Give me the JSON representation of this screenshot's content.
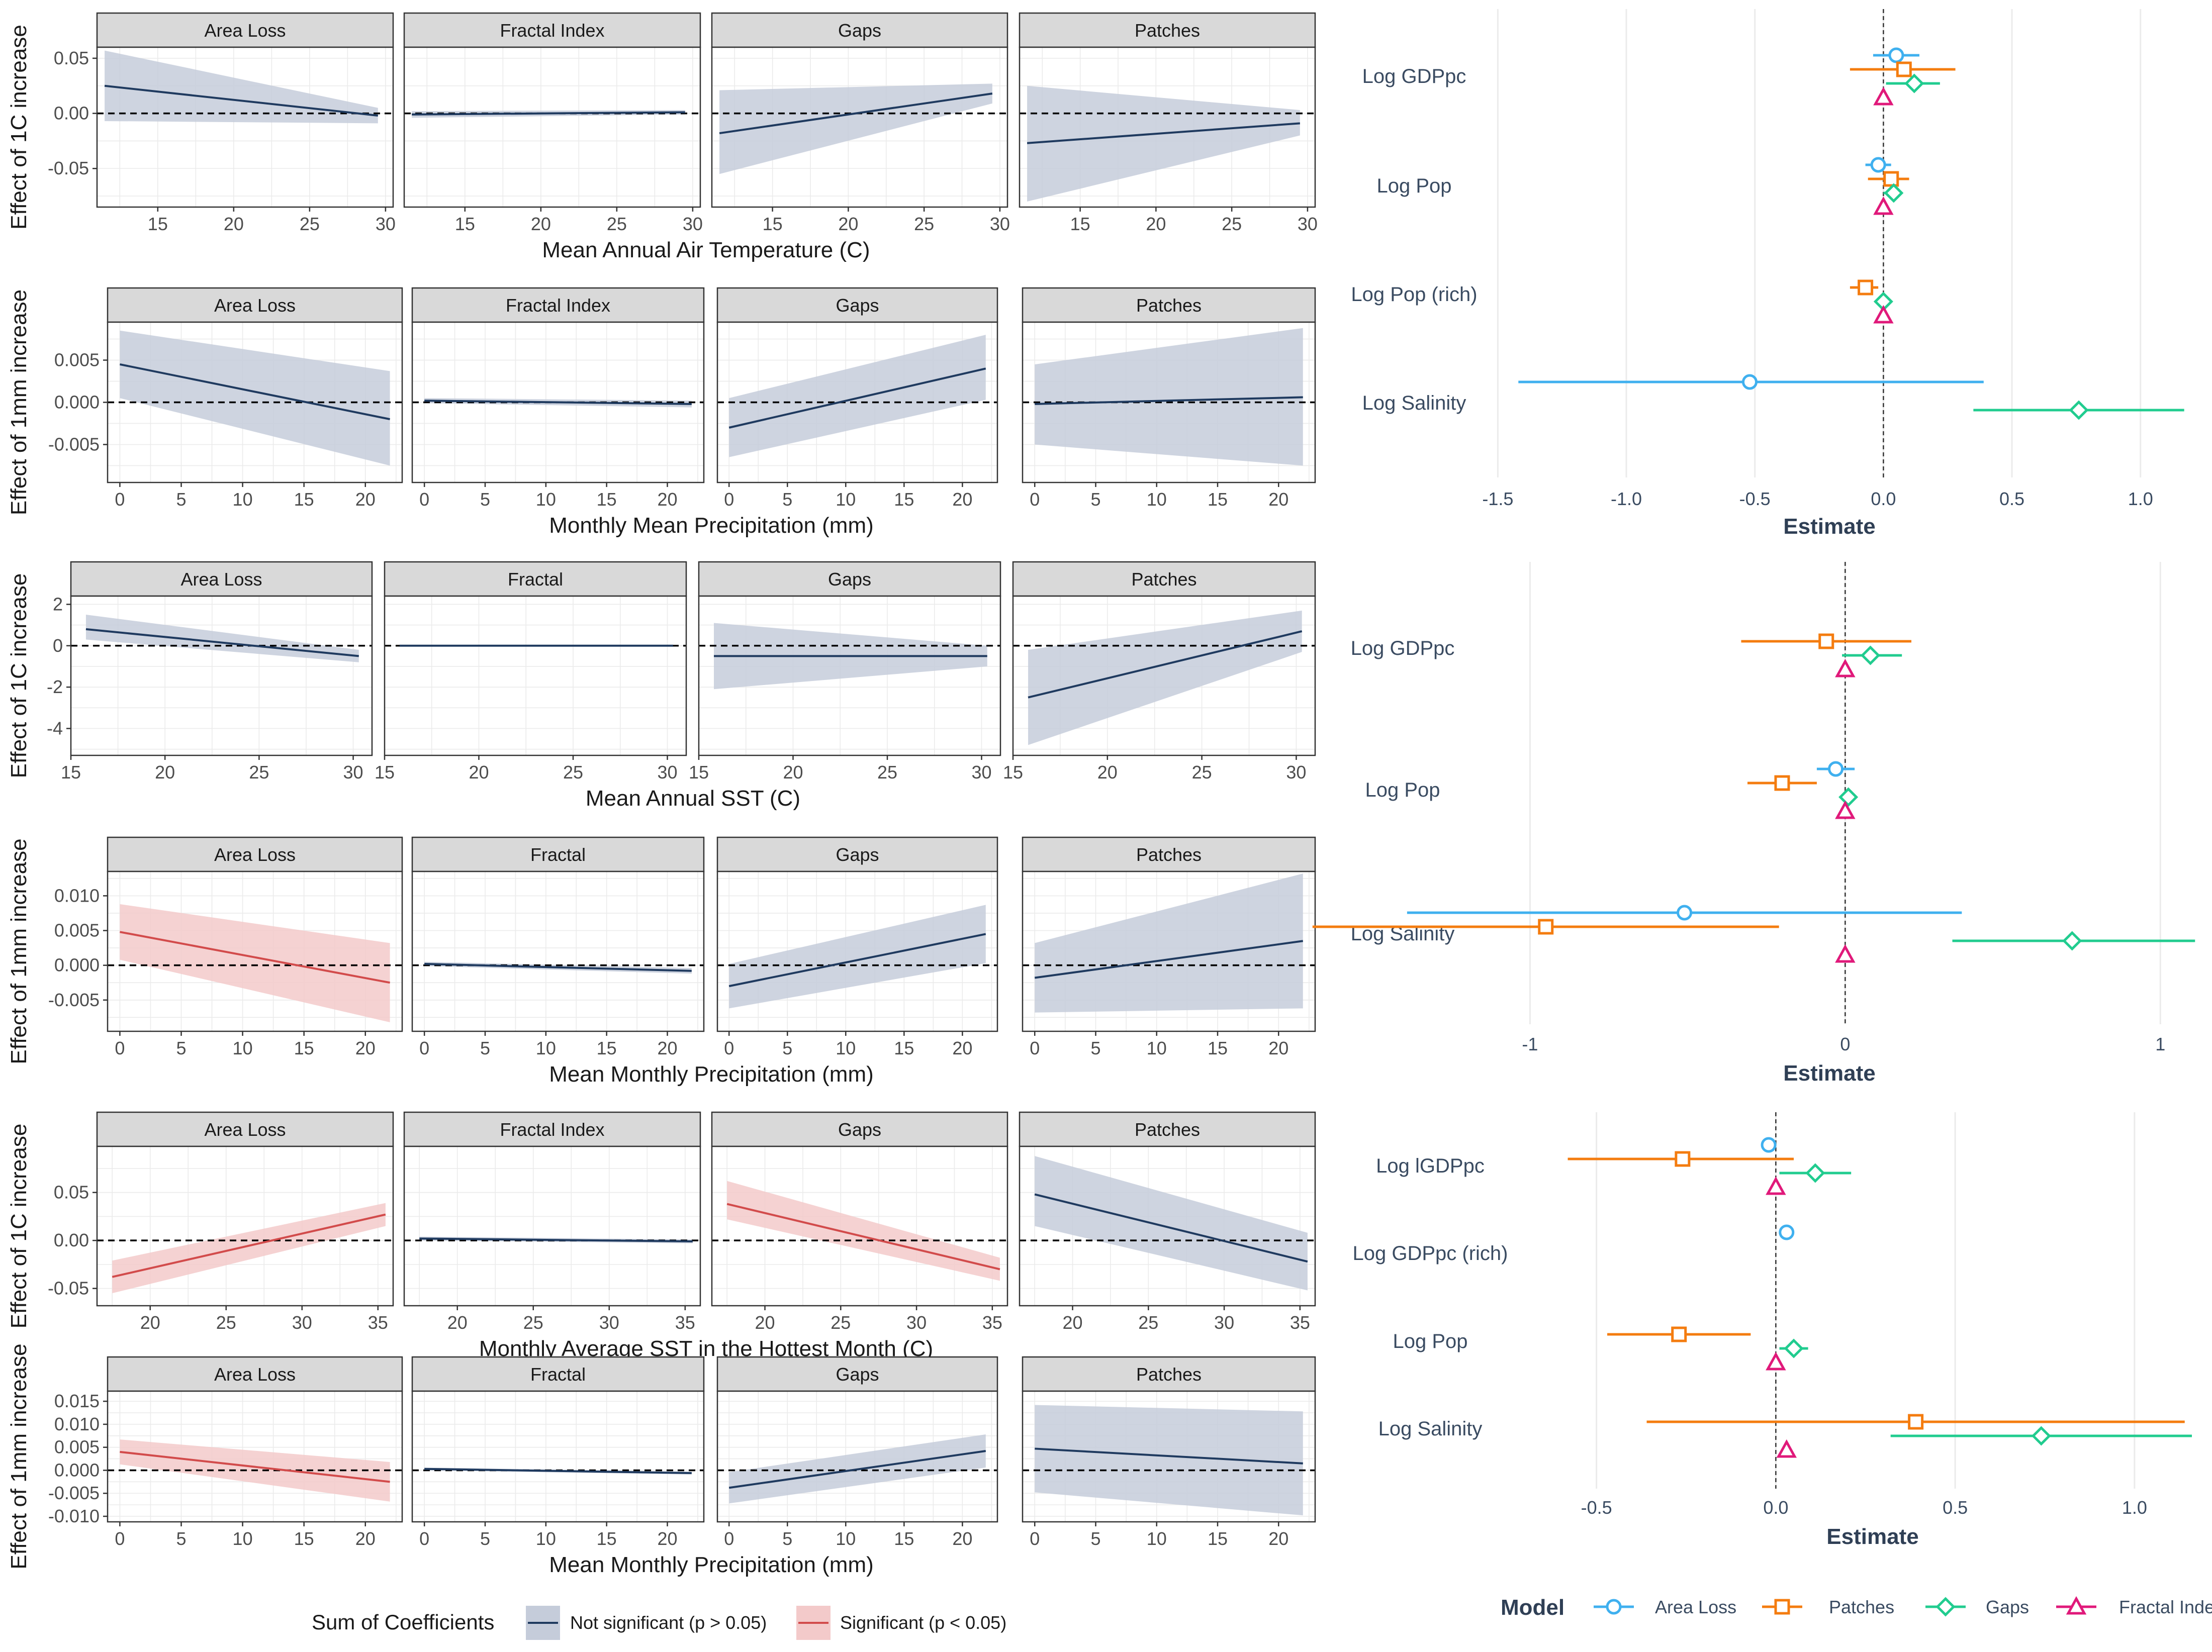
{
  "colors": {
    "not_significant_line": "#1f3a5f",
    "not_significant_band": "#c5ccda",
    "significant_line": "#d24b4b",
    "significant_band": "#f3caca",
    "strip_fill": "#d9d9d9",
    "area_loss": "#3fb0ef",
    "patches": "#f47c0f",
    "gaps": "#21cc8f",
    "fractal": "#e0197a"
  },
  "legend_bottom": {
    "title": "Sum of Coefficients",
    "items": [
      "Not significant (p > 0.05)",
      "Significant (p < 0.05)"
    ]
  },
  "legend_model": {
    "title": "Model",
    "items": [
      {
        "label": "Area Loss",
        "shape": "circle",
        "color_key": "area_loss"
      },
      {
        "label": "Patches",
        "shape": "square",
        "color_key": "patches"
      },
      {
        "label": "Gaps",
        "shape": "diamond",
        "color_key": "gaps"
      },
      {
        "label": "Fractal Inde",
        "shape": "triangle",
        "color_key": "fractal"
      }
    ]
  },
  "chart_data": [
    {
      "type": "line",
      "xlabel": "Mean Annual Air Temperature (C)",
      "ylabel": "Effect of 1C increase",
      "xlim": [
        11,
        30.5
      ],
      "ylim": [
        -0.085,
        0.06
      ],
      "xticks": [
        15,
        20,
        25,
        30
      ],
      "yticks": [
        -0.05,
        0,
        0.05
      ],
      "ytick_labels": [
        "-0.05",
        "0.00",
        "0.05"
      ],
      "panels": [
        {
          "name": "Area Loss",
          "significant": false,
          "x": [
            11.5,
            29.5
          ],
          "y": [
            0.025,
            -0.002
          ],
          "lo": [
            -0.007,
            -0.009
          ],
          "hi": [
            0.057,
            0.005
          ]
        },
        {
          "name": "Fractal Index",
          "significant": false,
          "x": [
            11.5,
            29.5
          ],
          "y": [
            -0.001,
            0.001
          ],
          "lo": [
            -0.004,
            -0.001
          ],
          "hi": [
            0.002,
            0.003
          ]
        },
        {
          "name": "Gaps",
          "significant": false,
          "x": [
            11.5,
            29.5
          ],
          "y": [
            -0.018,
            0.018
          ],
          "lo": [
            -0.055,
            0.009
          ],
          "hi": [
            0.021,
            0.027
          ]
        },
        {
          "name": "Patches",
          "significant": false,
          "x": [
            11.5,
            29.5
          ],
          "y": [
            -0.027,
            -0.009
          ],
          "lo": [
            -0.08,
            -0.02
          ],
          "hi": [
            0.025,
            0.003
          ]
        }
      ]
    },
    {
      "type": "line",
      "xlabel": "Monthly Mean Precipitation (mm)",
      "ylabel": "Effect of 1mm increase",
      "xlim": [
        -1,
        23
      ],
      "ylim": [
        -0.0095,
        0.0095
      ],
      "xticks": [
        0,
        5,
        10,
        15,
        20
      ],
      "yticks": [
        -0.005,
        0,
        0.005
      ],
      "ytick_labels": [
        "-0.005",
        "0.000",
        "0.005"
      ],
      "panels": [
        {
          "name": "Area Loss",
          "significant": false,
          "x": [
            0,
            22
          ],
          "y": [
            0.0045,
            -0.002
          ],
          "lo": [
            0.0005,
            -0.0075
          ],
          "hi": [
            0.0085,
            0.0037
          ]
        },
        {
          "name": "Fractal Index",
          "significant": false,
          "x": [
            0,
            22
          ],
          "y": [
            0.0002,
            -0.0002
          ],
          "lo": [
            -0.0001,
            -0.0006
          ],
          "hi": [
            0.0005,
            0.0002
          ]
        },
        {
          "name": "Gaps",
          "significant": false,
          "x": [
            0,
            22
          ],
          "y": [
            -0.003,
            0.004
          ],
          "lo": [
            -0.0065,
            0.0003
          ],
          "hi": [
            0.0005,
            0.008
          ]
        },
        {
          "name": "Patches",
          "significant": false,
          "x": [
            0,
            22
          ],
          "y": [
            -0.0002,
            0.0006
          ],
          "lo": [
            -0.005,
            -0.0075
          ],
          "hi": [
            0.0045,
            0.0088
          ]
        }
      ]
    },
    {
      "type": "line",
      "xlabel": "Mean Annual SST (C)",
      "ylabel": "Effect of 1C increase",
      "xlim": [
        15,
        31
      ],
      "ylim": [
        -5.3,
        2.4
      ],
      "xticks": [
        15,
        20,
        25,
        30
      ],
      "yticks": [
        -4,
        -2,
        0,
        2
      ],
      "ytick_labels": [
        "-4",
        "-2",
        "0",
        "2"
      ],
      "panels": [
        {
          "name": "Area Loss",
          "significant": false,
          "x": [
            15.8,
            30.3
          ],
          "y": [
            0.8,
            -0.5
          ],
          "lo": [
            0.3,
            -0.8
          ],
          "hi": [
            1.5,
            -0.2
          ]
        },
        {
          "name": "Fractal",
          "significant": false,
          "x": [
            15.8,
            30.3
          ],
          "y": [
            0.0,
            0.0
          ],
          "lo": [
            -0.03,
            -0.03
          ],
          "hi": [
            0.03,
            0.03
          ]
        },
        {
          "name": "Gaps",
          "significant": false,
          "x": [
            15.8,
            30.3
          ],
          "y": [
            -0.5,
            -0.5
          ],
          "lo": [
            -2.1,
            -1.0
          ],
          "hi": [
            1.1,
            0.0
          ]
        },
        {
          "name": "Patches",
          "significant": false,
          "x": [
            15.8,
            30.3
          ],
          "y": [
            -2.5,
            0.7
          ],
          "lo": [
            -4.8,
            -0.3
          ],
          "hi": [
            -0.2,
            1.7
          ]
        }
      ]
    },
    {
      "type": "line",
      "xlabel": "Mean Monthly Precipitation (mm)",
      "ylabel": "Effect of 1mm increase",
      "xlim": [
        -1,
        23
      ],
      "ylim": [
        -0.0095,
        0.0135
      ],
      "xticks": [
        0,
        5,
        10,
        15,
        20
      ],
      "yticks": [
        -0.005,
        0,
        0.005,
        0.01
      ],
      "ytick_labels": [
        "-0.005",
        "0.000",
        "0.005",
        "0.010"
      ],
      "panels": [
        {
          "name": "Area Loss",
          "significant": true,
          "x": [
            0,
            22
          ],
          "y": [
            0.0048,
            -0.0025
          ],
          "lo": [
            0.0008,
            -0.0082
          ],
          "hi": [
            0.0088,
            0.0032
          ]
        },
        {
          "name": "Fractal",
          "significant": false,
          "x": [
            0,
            22
          ],
          "y": [
            0.0002,
            -0.0008
          ],
          "lo": [
            -0.0001,
            -0.0012
          ],
          "hi": [
            0.0005,
            -0.0004
          ]
        },
        {
          "name": "Gaps",
          "significant": false,
          "x": [
            0,
            22
          ],
          "y": [
            -0.003,
            0.0045
          ],
          "lo": [
            -0.0062,
            0.0003
          ],
          "hi": [
            0.0002,
            0.0087
          ]
        },
        {
          "name": "Patches",
          "significant": false,
          "x": [
            0,
            22
          ],
          "y": [
            -0.0018,
            0.0035
          ],
          "lo": [
            -0.0068,
            -0.0062
          ],
          "hi": [
            0.0032,
            0.0132
          ]
        }
      ]
    },
    {
      "type": "line",
      "xlabel": "Monthly Average SST in the Hottest Month (C)",
      "ylabel": "Effect of 1C increase",
      "xlim": [
        16.5,
        36
      ],
      "ylim": [
        -0.068,
        0.098
      ],
      "xticks": [
        20,
        25,
        30,
        35
      ],
      "yticks": [
        -0.05,
        0,
        0.05
      ],
      "ytick_labels": [
        "-0.05",
        "0.00",
        "0.05"
      ],
      "panels": [
        {
          "name": "Area Loss",
          "significant": true,
          "x": [
            17.5,
            35.5
          ],
          "y": [
            -0.038,
            0.027
          ],
          "lo": [
            -0.055,
            0.015
          ],
          "hi": [
            -0.021,
            0.039
          ]
        },
        {
          "name": "Fractal Index",
          "significant": false,
          "x": [
            17.5,
            35.5
          ],
          "y": [
            0.002,
            -0.001
          ],
          "lo": [
            0.0,
            -0.003
          ],
          "hi": [
            0.004,
            0.001
          ]
        },
        {
          "name": "Gaps",
          "significant": true,
          "x": [
            17.5,
            35.5
          ],
          "y": [
            0.038,
            -0.03
          ],
          "lo": [
            0.022,
            -0.042
          ],
          "hi": [
            0.062,
            -0.018
          ]
        },
        {
          "name": "Patches",
          "significant": false,
          "x": [
            17.5,
            35.5
          ],
          "y": [
            0.048,
            -0.022
          ],
          "lo": [
            0.015,
            -0.052
          ],
          "hi": [
            0.088,
            0.008
          ]
        }
      ]
    },
    {
      "type": "line",
      "xlabel": "Mean Monthly Precipitation (mm)",
      "ylabel": "Effect of 1mm increase",
      "xlim": [
        -1,
        23
      ],
      "ylim": [
        -0.0112,
        0.0172
      ],
      "xticks": [
        0,
        5,
        10,
        15,
        20
      ],
      "yticks": [
        -0.01,
        -0.005,
        0,
        0.005,
        0.01,
        0.015
      ],
      "ytick_labels": [
        "-0.010",
        "-0.005",
        "0.000",
        "0.005",
        "0.010",
        "0.015"
      ],
      "panels": [
        {
          "name": "Area Loss",
          "significant": true,
          "x": [
            0,
            22
          ],
          "y": [
            0.004,
            -0.0025
          ],
          "lo": [
            0.0013,
            -0.0068
          ],
          "hi": [
            0.0067,
            0.0018
          ]
        },
        {
          "name": "Fractal",
          "significant": false,
          "x": [
            0,
            22
          ],
          "y": [
            0.0003,
            -0.0006
          ],
          "lo": [
            0.0,
            -0.0009
          ],
          "hi": [
            0.0006,
            -0.0003
          ]
        },
        {
          "name": "Gaps",
          "significant": false,
          "x": [
            0,
            22
          ],
          "y": [
            -0.0038,
            0.0042
          ],
          "lo": [
            -0.0072,
            0.0006
          ],
          "hi": [
            -0.0004,
            0.0078
          ]
        },
        {
          "name": "Patches",
          "significant": false,
          "x": [
            0,
            22
          ],
          "y": [
            0.0047,
            0.0015
          ],
          "lo": [
            -0.0048,
            -0.0098
          ],
          "hi": [
            0.0142,
            0.0128
          ]
        }
      ]
    },
    {
      "type": "scatter",
      "xlabel": "Estimate",
      "xlim": [
        -1.62,
        1.2
      ],
      "xticks": [
        -1.5,
        -1.0,
        -0.5,
        0.0,
        0.5,
        1.0
      ],
      "xtick_labels": [
        "-1.5",
        "-1.0",
        "-0.5",
        "0.0",
        "0.5",
        "1.0"
      ],
      "rows": [
        {
          "label": "Log GDPpc",
          "points": [
            {
              "model": "area_loss",
              "est": 0.05,
              "lo": -0.04,
              "hi": 0.14
            },
            {
              "model": "patches",
              "est": 0.08,
              "lo": -0.13,
              "hi": 0.28
            },
            {
              "model": "gaps",
              "est": 0.12,
              "lo": 0.01,
              "hi": 0.22
            },
            {
              "model": "fractal",
              "est": 0.0,
              "lo": null,
              "hi": null
            }
          ]
        },
        {
          "label": "Log Pop",
          "points": [
            {
              "model": "area_loss",
              "est": -0.02,
              "lo": -0.07,
              "hi": 0.03
            },
            {
              "model": "patches",
              "est": 0.03,
              "lo": -0.06,
              "hi": 0.1
            },
            {
              "model": "gaps",
              "est": 0.04,
              "lo": 0.0,
              "hi": 0.07
            },
            {
              "model": "fractal",
              "est": 0.0,
              "lo": null,
              "hi": null
            }
          ]
        },
        {
          "label": "Log Pop (rich)",
          "points": [
            {
              "model": "patches",
              "est": -0.07,
              "lo": -0.13,
              "hi": -0.02
            },
            {
              "model": "gaps",
              "est": 0.0,
              "lo": null,
              "hi": null
            },
            {
              "model": "fractal",
              "est": 0.0,
              "lo": null,
              "hi": null
            }
          ]
        },
        {
          "label": "Log Salinity",
          "points": [
            {
              "model": "area_loss",
              "est": -0.52,
              "lo": -1.42,
              "hi": 0.39
            },
            {
              "model": "gaps",
              "est": 0.76,
              "lo": 0.35,
              "hi": 1.17
            }
          ]
        }
      ]
    },
    {
      "type": "scatter",
      "xlabel": "Estimate",
      "xlim": [
        -1.2,
        1.1
      ],
      "xticks": [
        -1,
        0,
        1
      ],
      "xtick_labels": [
        "-1",
        "0",
        "1"
      ],
      "rows": [
        {
          "label": "Log GDPpc",
          "points": [
            {
              "model": "patches",
              "est": -0.06,
              "lo": -0.33,
              "hi": 0.21
            },
            {
              "model": "gaps",
              "est": 0.08,
              "lo": -0.01,
              "hi": 0.18
            },
            {
              "model": "fractal",
              "est": 0.0,
              "lo": null,
              "hi": null
            }
          ]
        },
        {
          "label": "Log Pop",
          "points": [
            {
              "model": "area_loss",
              "est": -0.03,
              "lo": -0.09,
              "hi": 0.03
            },
            {
              "model": "patches",
              "est": -0.2,
              "lo": -0.31,
              "hi": -0.09
            },
            {
              "model": "gaps",
              "est": 0.01,
              "lo": null,
              "hi": null
            },
            {
              "model": "fractal",
              "est": 0.0,
              "lo": null,
              "hi": null
            }
          ]
        },
        {
          "label": "Log Salinity",
          "points": [
            {
              "model": "area_loss",
              "est": -0.51,
              "lo": -1.39,
              "hi": 0.37
            },
            {
              "model": "patches",
              "est": -0.95,
              "lo": -1.69,
              "hi": -0.21
            },
            {
              "model": "gaps",
              "est": 0.72,
              "lo": 0.34,
              "hi": 1.11
            },
            {
              "model": "fractal",
              "est": 0.0,
              "lo": null,
              "hi": null
            }
          ]
        }
      ]
    },
    {
      "type": "scatter",
      "xlabel": "Estimate",
      "xlim": [
        -0.62,
        1.16
      ],
      "xticks": [
        -0.5,
        0.0,
        0.5,
        1.0
      ],
      "xtick_labels": [
        "-0.5",
        "0.0",
        "0.5",
        "1.0"
      ],
      "rows": [
        {
          "label": "Log lGDPpc",
          "points": [
            {
              "model": "area_loss",
              "est": -0.02,
              "lo": null,
              "hi": null
            },
            {
              "model": "patches",
              "est": -0.26,
              "lo": -0.58,
              "hi": 0.05
            },
            {
              "model": "gaps",
              "est": 0.11,
              "lo": 0.01,
              "hi": 0.21
            },
            {
              "model": "fractal",
              "est": 0.0,
              "lo": null,
              "hi": null
            }
          ]
        },
        {
          "label": "Log GDPpc (rich)",
          "points": [
            {
              "model": "area_loss",
              "est": 0.03,
              "lo": null,
              "hi": null
            }
          ]
        },
        {
          "label": "Log Pop",
          "points": [
            {
              "model": "patches",
              "est": -0.27,
              "lo": -0.47,
              "hi": -0.07
            },
            {
              "model": "gaps",
              "est": 0.05,
              "lo": 0.01,
              "hi": 0.09
            },
            {
              "model": "fractal",
              "est": 0.0,
              "lo": null,
              "hi": null
            }
          ]
        },
        {
          "label": "Log Salinity",
          "points": [
            {
              "model": "patches",
              "est": 0.39,
              "lo": -0.36,
              "hi": 1.14
            },
            {
              "model": "gaps",
              "est": 0.74,
              "lo": 0.32,
              "hi": 1.16
            },
            {
              "model": "fractal",
              "est": 0.03,
              "lo": null,
              "hi": null
            }
          ]
        }
      ]
    }
  ]
}
